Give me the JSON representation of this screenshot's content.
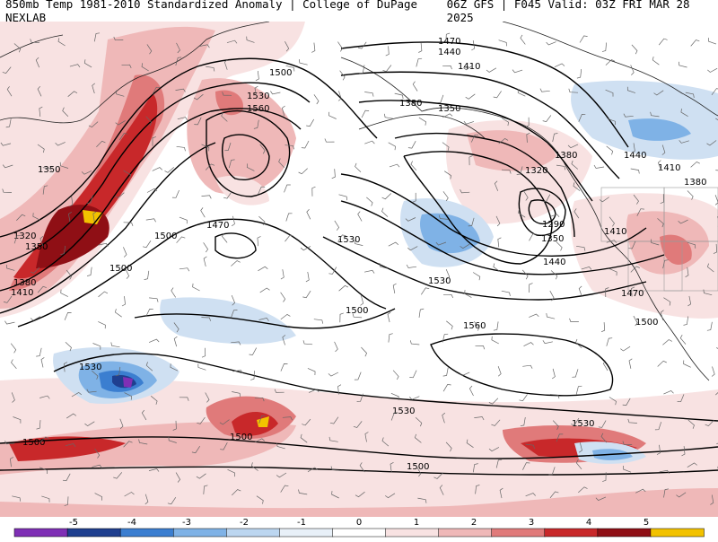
{
  "header": {
    "left_text": "850mb Temp 1981-2010 Standardized Anomaly | College of DuPage NEXLAB",
    "right_text": "06Z GFS | F045 Valid: 03Z FRI MAR 28 2025"
  },
  "contour_labels": [
    "1500",
    "1530",
    "1560",
    "1350",
    "1470",
    "1440",
    "1410",
    "1380",
    "1350",
    "1320",
    "1380",
    "1440",
    "1410",
    "1380",
    "1290",
    "1350",
    "1440",
    "1410",
    "1470",
    "1500",
    "1470",
    "1500",
    "1530",
    "1320",
    "1350",
    "1380",
    "1410",
    "1500",
    "1500",
    "1530",
    "1560",
    "1530",
    "1530",
    "1500",
    "1500",
    "1500",
    "1530"
  ],
  "colorbar": {
    "tick_labels": [
      "-5",
      "-4",
      "-3",
      "-2",
      "-1",
      "0",
      "1",
      "2",
      "3",
      "4",
      "5"
    ],
    "colors": [
      "#7f2fb5",
      "#1f3f8f",
      "#3b7ed0",
      "#7fb2e6",
      "#bcd6f0",
      "#e8f0f8",
      "#ffffff",
      "#f8e2e2",
      "#efb8b8",
      "#e07a7a",
      "#c8282a",
      "#8f0f15",
      "#f2c200"
    ]
  },
  "palette": {
    "neg5": "#7f2fb5",
    "neg4": "#1f3f8f",
    "neg3": "#3b7ed0",
    "neg2": "#7fb2e6",
    "neg1": "#cfe0f2",
    "pos1": "#f8e2e2",
    "pos2": "#efb8b8",
    "pos3": "#e07a7a",
    "pos4": "#c8282a",
    "pos5": "#8f0f15",
    "pos6": "#f2c200"
  }
}
